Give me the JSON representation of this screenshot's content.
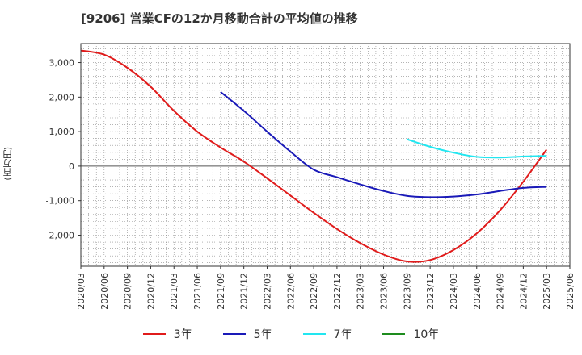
{
  "chart_data": {
    "type": "line",
    "title": "[9206]  営業CFの12か月移動合計の平均値の推移",
    "ylabel": "(百万円)",
    "xlabel": "",
    "x": [
      "2020/03",
      "2020/06",
      "2020/09",
      "2020/12",
      "2021/03",
      "2021/06",
      "2021/09",
      "2021/12",
      "2022/03",
      "2022/06",
      "2022/09",
      "2022/12",
      "2023/03",
      "2023/06",
      "2023/09",
      "2023/12",
      "2024/03",
      "2024/06",
      "2024/09",
      "2024/12",
      "2025/03",
      "2025/06"
    ],
    "ylim": [
      -2900,
      3550
    ],
    "yticks": [
      -2000,
      -1000,
      0,
      1000,
      2000,
      3000
    ],
    "ytick_labels": [
      "-2,000",
      "-1,000",
      "0",
      "1,000",
      "2,000",
      "3,000"
    ],
    "grid": true,
    "legend_position": "bottom",
    "series": [
      {
        "name": "3年",
        "color": "#e01b1b",
        "values": [
          3350,
          3230,
          2850,
          2300,
          1600,
          1000,
          540,
          130,
          -350,
          -850,
          -1350,
          -1820,
          -2230,
          -2560,
          -2760,
          -2720,
          -2430,
          -1950,
          -1280,
          -450,
          480,
          null
        ]
      },
      {
        "name": "5年",
        "color": "#1a1ab8",
        "values": [
          null,
          null,
          null,
          null,
          null,
          null,
          2150,
          1600,
          1000,
          420,
          -100,
          -320,
          -530,
          -720,
          -860,
          -900,
          -880,
          -820,
          -720,
          -630,
          -600,
          null
        ]
      },
      {
        "name": "7年",
        "color": "#22e6f0",
        "values": [
          null,
          null,
          null,
          null,
          null,
          null,
          null,
          null,
          null,
          null,
          null,
          null,
          null,
          null,
          780,
          560,
          390,
          270,
          250,
          280,
          300,
          null
        ]
      },
      {
        "name": "10年",
        "color": "#1e8c1e",
        "values": [
          null,
          null,
          null,
          null,
          null,
          null,
          null,
          null,
          null,
          null,
          null,
          null,
          null,
          null,
          null,
          null,
          null,
          null,
          null,
          null,
          null,
          null
        ]
      }
    ]
  }
}
